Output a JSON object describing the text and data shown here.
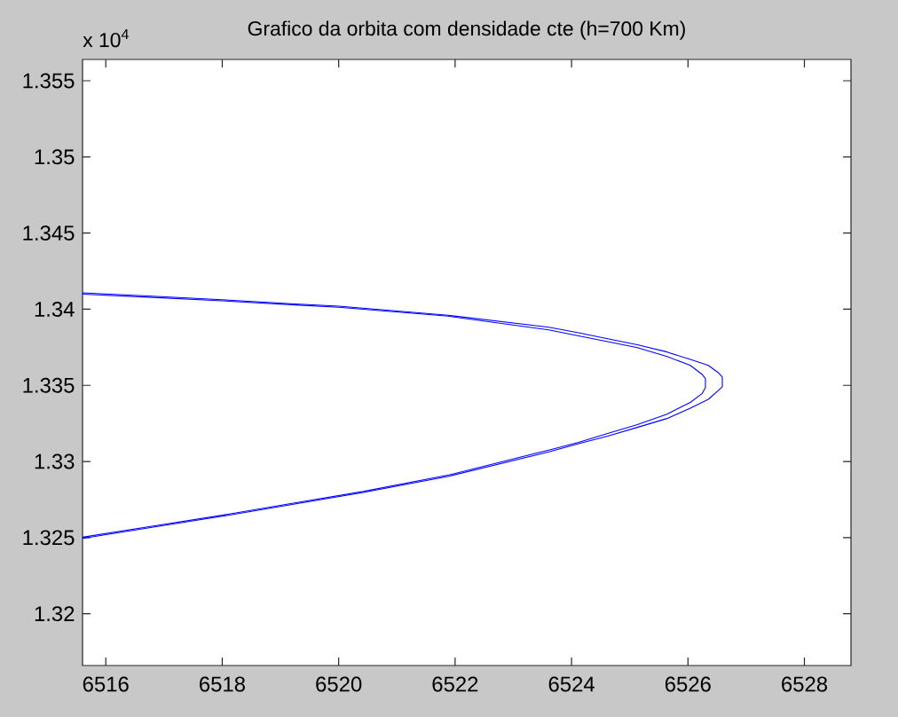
{
  "chart_data": {
    "type": "line",
    "title": "Grafico da orbita com densidade cte (h=700 Km)",
    "annotations": [
      "x 10$^{4}$"
    ],
    "xlim": [
      6515.6,
      6528.8
    ],
    "ylim": [
      1.3166,
      1.3564
    ],
    "xticks": [
      6516,
      6518,
      6520,
      6522,
      6524,
      6526,
      6528
    ],
    "yticks": [
      1.32,
      1.325,
      1.33,
      1.335,
      1.34,
      1.345,
      1.35,
      1.355
    ],
    "series": [
      {
        "color": "#0000ff",
        "x": [
          6515.6,
          6516.72,
          6518.0,
          6519.25,
          6520.0,
          6521.88,
          6523.61,
          6524.12,
          6524.62,
          6525.13,
          6525.64,
          6526.04,
          6526.35,
          6526.52,
          6526.59,
          6526.59,
          6526.52,
          6526.35,
          6526.04,
          6525.64,
          6525.13,
          6524.62,
          6524.12,
          6523.61,
          6521.89,
          6520.42,
          6519.2,
          6518.0,
          6516.77,
          6515.6
        ],
        "values": [
          1.34107,
          1.34087,
          1.34062,
          1.34035,
          1.3402,
          1.3396,
          1.33882,
          1.33845,
          1.33806,
          1.33767,
          1.33719,
          1.3367,
          1.33631,
          1.33583,
          1.33555,
          1.33491,
          1.33466,
          1.33408,
          1.3335,
          1.33282,
          1.33224,
          1.33166,
          1.33117,
          1.33063,
          1.32903,
          1.32796,
          1.32718,
          1.3264,
          1.32566,
          1.32495
        ]
      },
      {
        "color": "#0000ff",
        "x": [
          6515.6,
          6516.72,
          6518.0,
          6519.25,
          6520.0,
          6521.88,
          6523.61,
          6524.12,
          6524.62,
          6525.13,
          6525.64,
          6526.04,
          6526.24,
          6526.3,
          6526.3,
          6526.24,
          6526.04,
          6525.64,
          6525.13,
          6524.62,
          6524.12,
          6523.61,
          6521.89,
          6520.42,
          6519.2,
          6518.0,
          6516.77,
          6515.6
        ],
        "values": [
          1.34099,
          1.34079,
          1.34055,
          1.34028,
          1.34013,
          1.33954,
          1.33864,
          1.33825,
          1.33787,
          1.33748,
          1.33689,
          1.33631,
          1.33573,
          1.33544,
          1.33485,
          1.33445,
          1.33388,
          1.33311,
          1.33242,
          1.33184,
          1.33126,
          1.33075,
          1.32911,
          1.32803,
          1.32725,
          1.32647,
          1.32573,
          1.32503
        ]
      }
    ]
  }
}
